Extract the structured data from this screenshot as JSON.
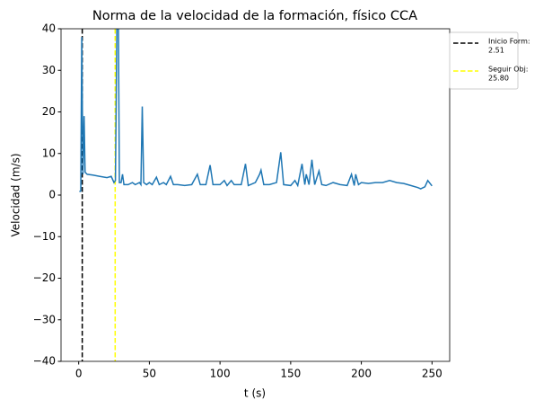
{
  "chart_data": {
    "type": "line",
    "title": "Norma de la velocidad de la formación, físico CCA",
    "x_label": "t (s)",
    "y_label": "Velocidad (m/s)",
    "xlim": [
      -12.5,
      262.5
    ],
    "xticks": [
      0,
      50,
      100,
      150,
      200,
      250
    ],
    "ylim": [
      -40,
      40
    ],
    "yticks": [
      {
        "value": -40,
        "label": "−40"
      },
      {
        "value": -30,
        "label": "−30"
      },
      {
        "value": -20,
        "label": "−20"
      },
      {
        "value": -10,
        "label": "−10"
      },
      0,
      10,
      20,
      30,
      40
    ],
    "series": [
      {
        "color": "#1f77b4",
        "x": [
          0.5,
          1.5,
          2.2,
          3,
          3.8,
          4.5,
          6,
          10,
          15,
          20,
          23,
          25,
          26,
          27,
          28,
          28.8,
          30,
          31,
          32,
          35,
          38,
          40,
          43,
          44,
          45,
          46,
          48,
          50,
          52,
          55,
          57,
          60,
          62,
          65,
          67,
          70,
          75,
          80,
          84,
          86,
          90,
          93,
          95,
          100,
          103,
          105,
          108,
          110,
          115,
          118,
          120,
          125,
          128,
          129,
          131,
          135,
          140,
          143,
          145,
          150,
          153,
          155,
          158,
          160,
          161,
          163,
          165,
          167,
          170,
          172,
          175,
          180,
          185,
          190,
          193,
          195,
          196,
          198,
          200,
          205,
          210,
          215,
          220,
          225,
          230,
          235,
          240,
          242,
          245,
          247,
          250
        ],
        "values": [
          0.8,
          1,
          38,
          5,
          19,
          5.5,
          5,
          4.8,
          4.5,
          4.2,
          4.5,
          3,
          3.5,
          40,
          45,
          3,
          3,
          5,
          2.5,
          2.5,
          3,
          2.5,
          3,
          2.5,
          21.3,
          3,
          2.5,
          3,
          2.5,
          4.3,
          2.5,
          3,
          2.5,
          4.5,
          2.5,
          2.5,
          2.3,
          2.5,
          5,
          2.5,
          2.5,
          7.2,
          2.5,
          2.5,
          3.5,
          2.3,
          3.5,
          2.5,
          2.5,
          7.5,
          2.3,
          3,
          5,
          6,
          2.5,
          2.5,
          3,
          10.3,
          2.5,
          2.3,
          3.5,
          2.3,
          7.5,
          2.5,
          5,
          2.5,
          8.5,
          2.5,
          5.8,
          2.5,
          2.3,
          3,
          2.5,
          2.3,
          5,
          2.3,
          5,
          2.5,
          3,
          2.8,
          3,
          3,
          3.5,
          3,
          2.8,
          2.3,
          1.8,
          1.5,
          2,
          3.5,
          2.2
        ]
      }
    ],
    "vlines": [
      {
        "name": "Inicio Form:",
        "color": "#000000",
        "x": 2.51
      },
      {
        "name": "Seguir Obj:",
        "color": "#ffff00",
        "x": {
          "value": 25.8,
          "label": "25.80"
        }
      }
    ]
  }
}
